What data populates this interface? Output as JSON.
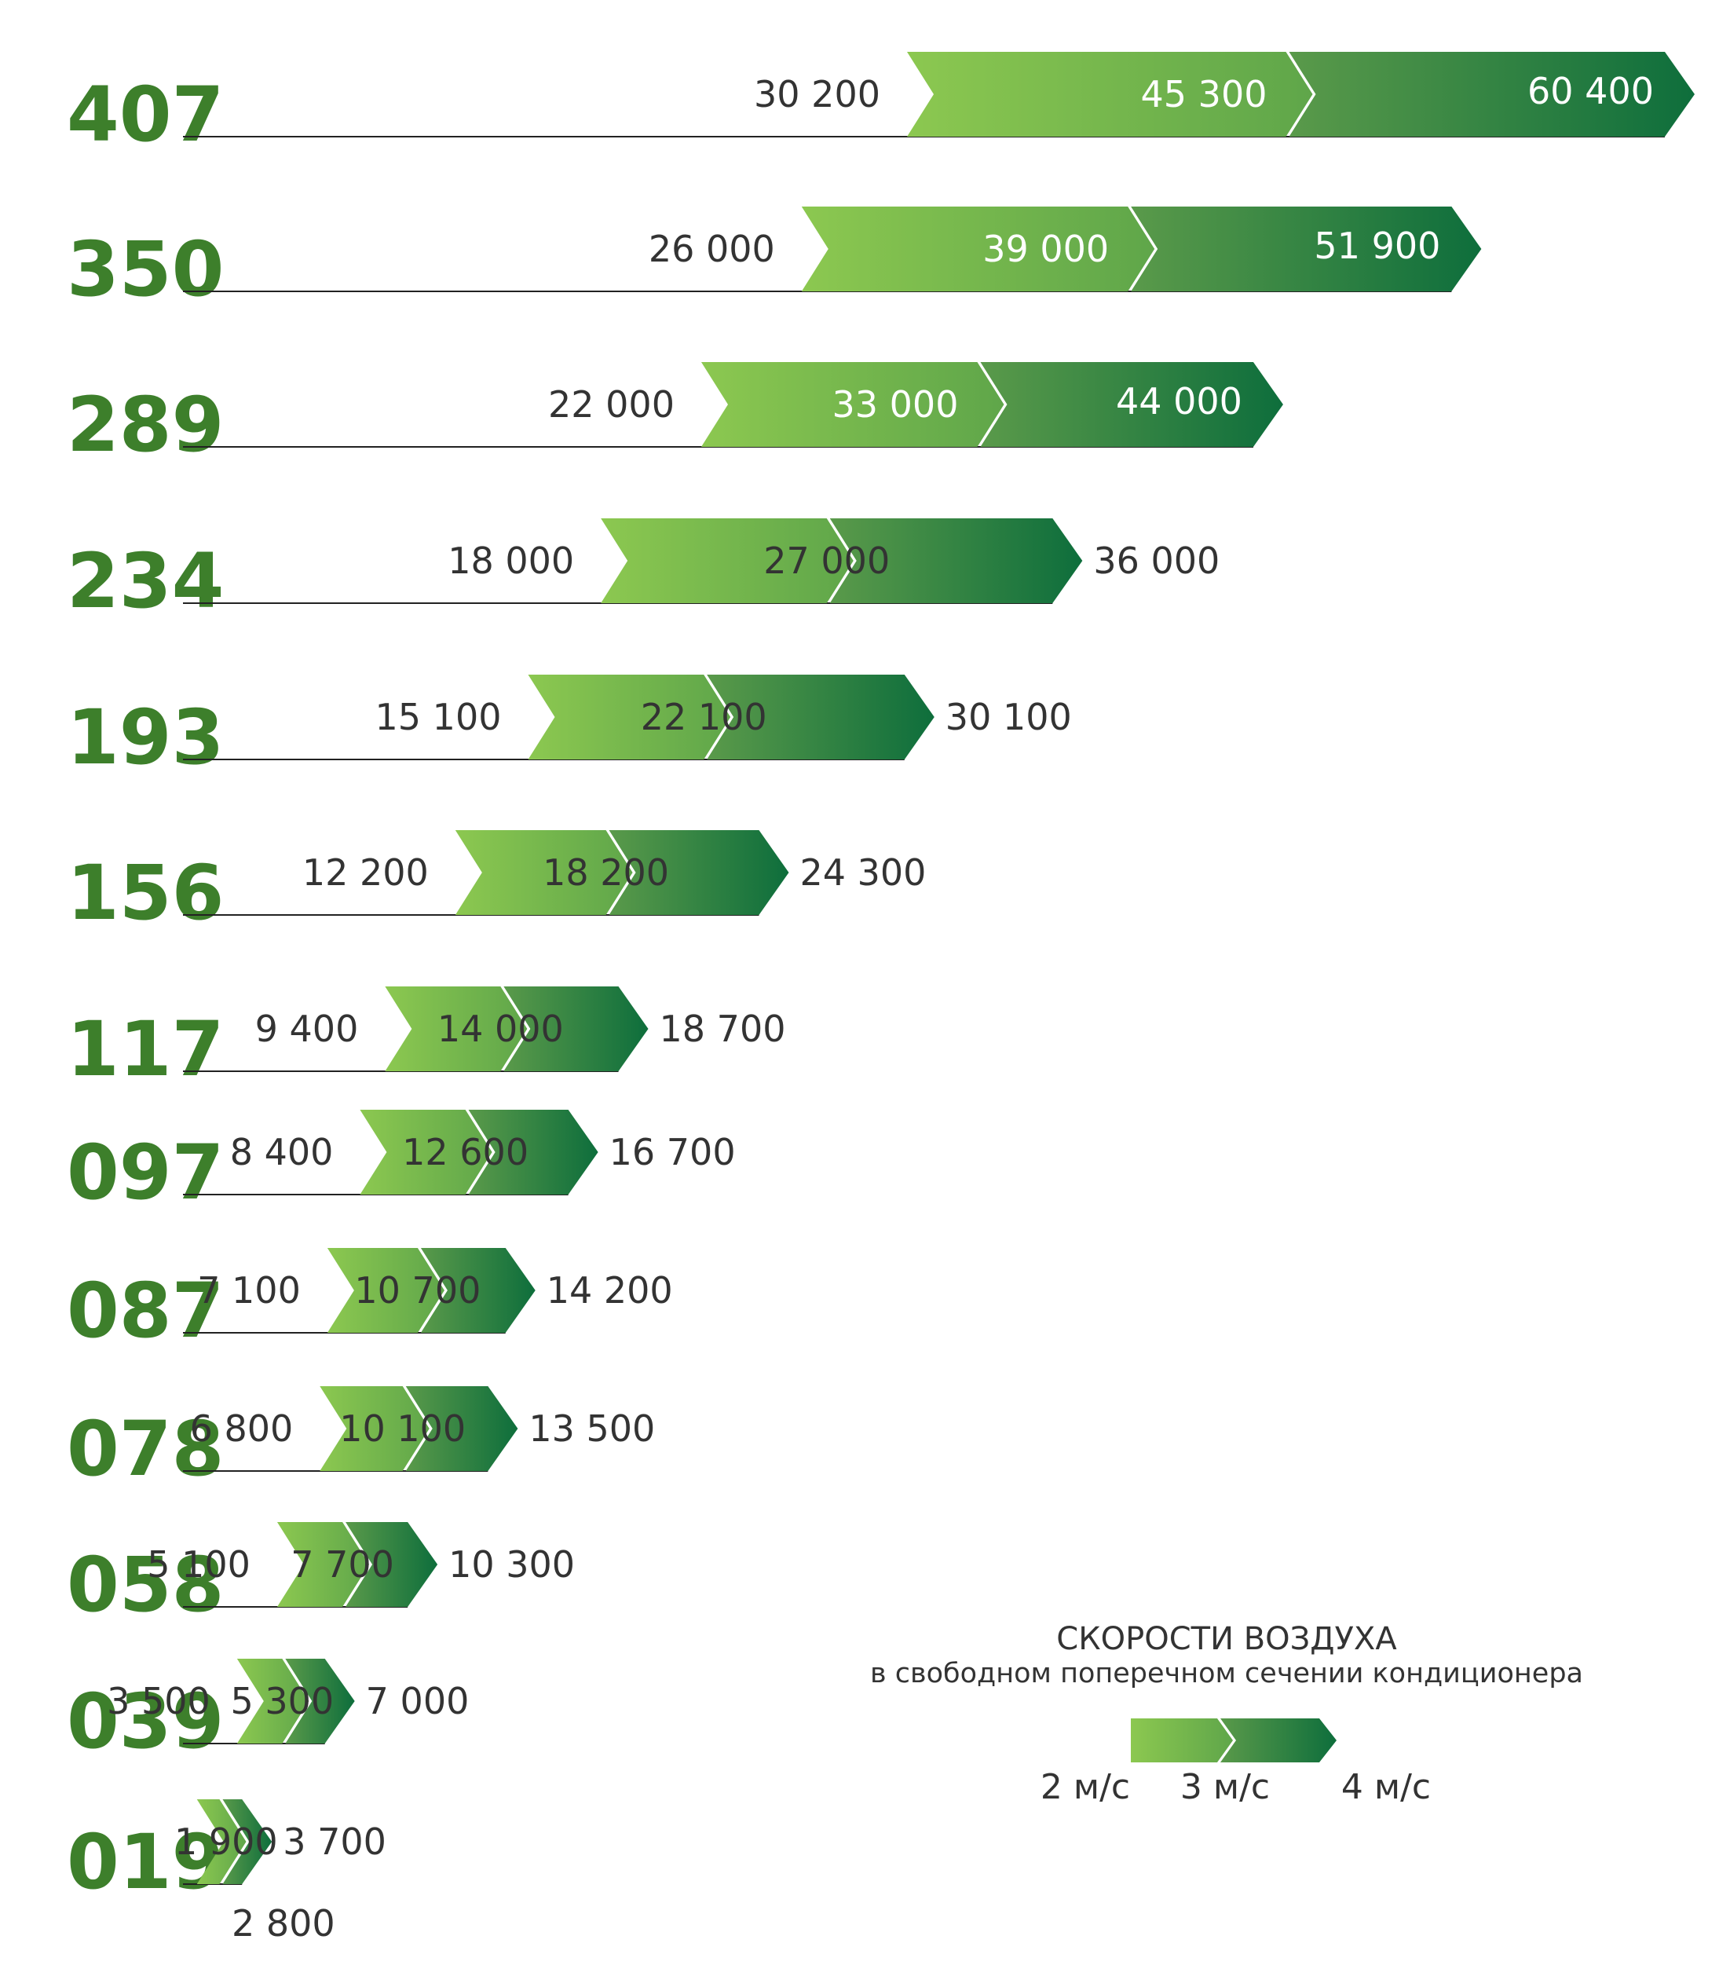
{
  "chart_data": {
    "type": "bar",
    "legend": {
      "title": "СКОРОСТИ ВОЗДУХА",
      "subtitle": "в свободном поперечном сечении кондиционера",
      "items": [
        "2 м/с",
        "3 м/с",
        "4 м/с"
      ],
      "placement": "bottom-right"
    },
    "series_names": [
      "2 м/с",
      "3 м/с",
      "4 м/с"
    ],
    "colors": {
      "light_green": "#8cc850",
      "mid_green": "#4f9a45",
      "dark_green": "#0e6e3c",
      "size_label": "#3d7f2b"
    },
    "rows": [
      {
        "size": "407",
        "v2": "30 200",
        "v3": "45 300",
        "v4": "60 400",
        "n2": 30200,
        "n3": 45300,
        "n4": 60400
      },
      {
        "size": "350",
        "v2": "26 000",
        "v3": "39 000",
        "v4": "51 900",
        "n2": 26000,
        "n3": 39000,
        "n4": 51900
      },
      {
        "size": "289",
        "v2": "22 000",
        "v3": "33 000",
        "v4": "44 000",
        "n2": 22000,
        "n3": 33000,
        "n4": 44000
      },
      {
        "size": "234",
        "v2": "18 000",
        "v3": "27 000",
        "v4": "36 000",
        "n2": 18000,
        "n3": 27000,
        "n4": 36000
      },
      {
        "size": "193",
        "v2": "15 100",
        "v3": "22 100",
        "v4": "30 100",
        "n2": 15100,
        "n3": 22100,
        "n4": 30100
      },
      {
        "size": "156",
        "v2": "12 200",
        "v3": "18 200",
        "v4": "24 300",
        "n2": 12200,
        "n3": 18200,
        "n4": 24300
      },
      {
        "size": "117",
        "v2": "9 400",
        "v3": "14 000",
        "v4": "18 700",
        "n2": 9400,
        "n3": 14000,
        "n4": 18700
      },
      {
        "size": "097",
        "v2": "8 400",
        "v3": "12 600",
        "v4": "16 700",
        "n2": 8400,
        "n3": 12600,
        "n4": 16700
      },
      {
        "size": "087",
        "v2": "7 100",
        "v3": "10 700",
        "v4": "14 200",
        "n2": 7100,
        "n3": 10700,
        "n4": 14200
      },
      {
        "size": "078",
        "v2": "6 800",
        "v3": "10 100",
        "v4": "13 500",
        "n2": 6800,
        "n3": 10100,
        "n4": 13500
      },
      {
        "size": "058",
        "v2": "5 100",
        "v3": "7 700",
        "v4": "10 300",
        "n2": 5100,
        "n3": 7700,
        "n4": 10300
      },
      {
        "size": "039",
        "v2": "3 500",
        "v3": "5 300",
        "v4": "7 000",
        "n2": 3500,
        "n3": 5300,
        "n4": 7000
      },
      {
        "size": "019",
        "v2": "1 900",
        "v3": "2 800",
        "v4": "3 700",
        "n2": 1900,
        "n3": 2800,
        "n4": 3700
      }
    ]
  }
}
